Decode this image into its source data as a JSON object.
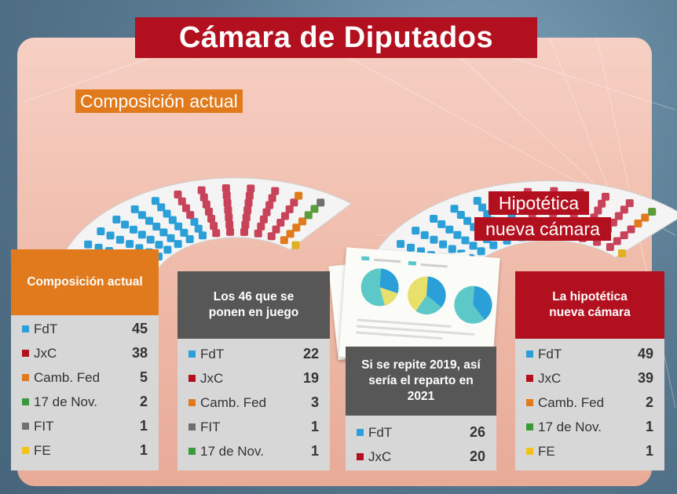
{
  "title": "Cámara de Diputados",
  "labels": {
    "current": "Composición actual",
    "hypothetical_line1": "Hipotética",
    "hypothetical_line2": "nueva cámara"
  },
  "colors": {
    "FdT": "#2a9fd8",
    "JxC": "#b3101f",
    "CambFed": "#e07a1c",
    "Nov17": "#3a9a3a",
    "FIT": "#707070",
    "FE": "#f2c21a"
  },
  "cards": [
    {
      "title": "Composición actual",
      "header_color": "#e07a1c",
      "rows": [
        {
          "label": "FdT",
          "value": "45",
          "color": "#2a9fd8"
        },
        {
          "label": "JxC",
          "value": "38",
          "color": "#b3101f"
        },
        {
          "label": "Camb. Fed",
          "value": "5",
          "color": "#e07a1c"
        },
        {
          "label": "17 de Nov.",
          "value": "2",
          "color": "#3a9a3a"
        },
        {
          "label": "FIT",
          "value": "1",
          "color": "#707070"
        },
        {
          "label": "FE",
          "value": "1",
          "color": "#f2c21a"
        }
      ]
    },
    {
      "title": "Los 46 que se ponen en juego",
      "header_color": "#575757",
      "rows": [
        {
          "label": "FdT",
          "value": "22",
          "color": "#2a9fd8"
        },
        {
          "label": "JxC",
          "value": "19",
          "color": "#b3101f"
        },
        {
          "label": "Camb. Fed",
          "value": "3",
          "color": "#e07a1c"
        },
        {
          "label": "FIT",
          "value": "1",
          "color": "#707070"
        },
        {
          "label": "17 de Nov.",
          "value": "1",
          "color": "#3a9a3a"
        }
      ]
    },
    {
      "title": "Si se repite 2019, así sería el reparto en 2021",
      "header_color": "#575757",
      "rows": [
        {
          "label": "FdT",
          "value": "26",
          "color": "#2a9fd8"
        },
        {
          "label": "JxC",
          "value": "20",
          "color": "#b3101f"
        }
      ]
    },
    {
      "title": "La hipotética nueva cámara",
      "header_color": "#b3101f",
      "rows": [
        {
          "label": "FdT",
          "value": "49",
          "color": "#2a9fd8"
        },
        {
          "label": "JxC",
          "value": "39",
          "color": "#b3101f"
        },
        {
          "label": "Camb. Fed",
          "value": "2",
          "color": "#e07a1c"
        },
        {
          "label": "17 de Nov.",
          "value": "1",
          "color": "#3a9a3a"
        },
        {
          "label": "FE",
          "value": "1",
          "color": "#f2c21a"
        }
      ]
    }
  ]
}
